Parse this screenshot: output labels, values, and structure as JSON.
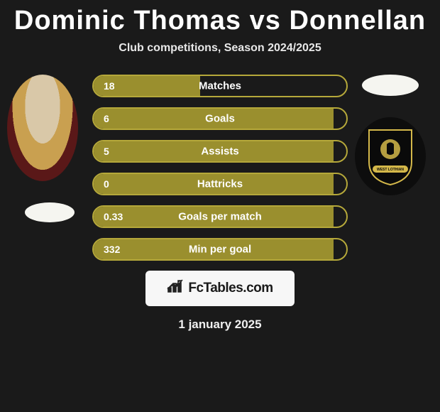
{
  "title": {
    "player1": "Dominic Thomas",
    "vs": "vs",
    "player2": "Donnellan"
  },
  "subtitle": "Club competitions, Season 2024/2025",
  "colors": {
    "background": "#1a1a1a",
    "bar_fill_left": "#9a8f2e",
    "bar_border": "#b5a83a",
    "bar_fill_right": "#1a1a1a",
    "text": "#ffffff"
  },
  "stats": [
    {
      "label": "Matches",
      "left_value": "18",
      "left_pct": 42
    },
    {
      "label": "Goals",
      "left_value": "6",
      "left_pct": 95
    },
    {
      "label": "Assists",
      "left_value": "5",
      "left_pct": 95
    },
    {
      "label": "Hattricks",
      "left_value": "0",
      "left_pct": 95
    },
    {
      "label": "Goals per match",
      "left_value": "0.33",
      "left_pct": 95
    },
    {
      "label": "Min per goal",
      "left_value": "332",
      "left_pct": 95
    }
  ],
  "footer": {
    "logo_text": "FcTables.com",
    "date": "1 january 2025"
  },
  "crest_right": {
    "shield_fill": "#0a0a0a",
    "shield_stroke": "#d4b84a",
    "banner_text": "WEST LOTHIAN"
  }
}
